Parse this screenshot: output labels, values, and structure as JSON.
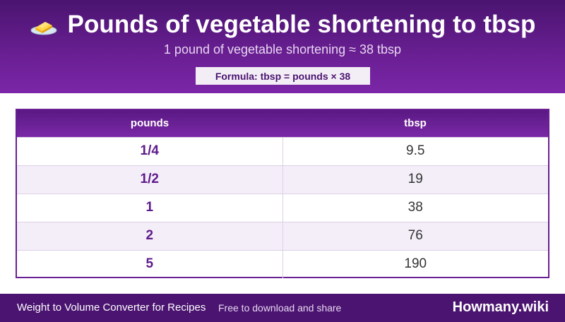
{
  "header": {
    "icon": "butter-icon",
    "title": "Pounds of vegetable shortening to tbsp",
    "subtitle": "1 pound of vegetable shortening ≈ 38 tbsp",
    "formula": "Formula: tbsp = pounds × 38"
  },
  "table": {
    "columns": [
      "pounds",
      "tbsp"
    ],
    "rows": [
      [
        "1/4",
        "9.5"
      ],
      [
        "1/2",
        "19"
      ],
      [
        "1",
        "38"
      ],
      [
        "2",
        "76"
      ],
      [
        "5",
        "190"
      ]
    ]
  },
  "footer": {
    "left": "Weight to Volume Converter for Recipes",
    "middle": "Free to download and share",
    "brand": "Howmany.wiki"
  },
  "colors": {
    "header_purple": "#6a1f93",
    "footer_purple": "#4a1470",
    "row_alt": "#f4eef8"
  }
}
